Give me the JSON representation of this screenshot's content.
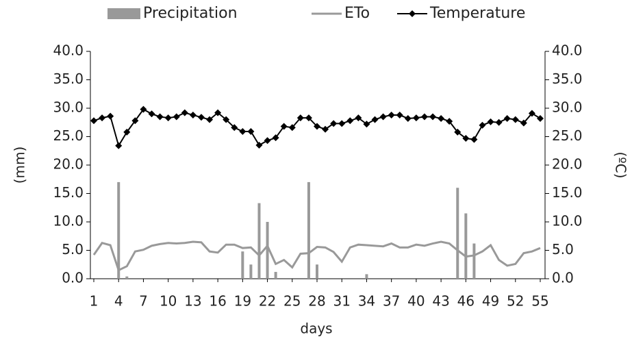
{
  "chart_data": {
    "type": "combo",
    "xlabel": "days",
    "ylabel": "(mm)",
    "y2label": "(ºC)",
    "x": [
      1,
      2,
      3,
      4,
      5,
      6,
      7,
      8,
      9,
      10,
      11,
      12,
      13,
      14,
      15,
      16,
      17,
      18,
      19,
      20,
      21,
      22,
      23,
      24,
      25,
      26,
      27,
      28,
      29,
      30,
      31,
      32,
      33,
      34,
      35,
      36,
      37,
      38,
      39,
      40,
      41,
      42,
      43,
      44,
      45,
      46,
      47,
      48,
      49,
      50,
      51,
      52,
      53,
      54,
      55
    ],
    "xlim": [
      1,
      55
    ],
    "xticks": [
      1,
      4,
      7,
      10,
      13,
      16,
      19,
      22,
      25,
      28,
      31,
      34,
      37,
      40,
      43,
      46,
      49,
      52,
      55
    ],
    "ylim": [
      0,
      40
    ],
    "yticks": [
      {
        "value": 0,
        "label": "0.0"
      },
      {
        "value": 5,
        "label": "5.0"
      },
      {
        "value": 10,
        "label": "10.0"
      },
      {
        "value": 15,
        "label": "15.0"
      },
      {
        "value": 20,
        "label": "20.0"
      },
      {
        "value": 25,
        "label": "25.0"
      },
      {
        "value": 30,
        "label": "30.0"
      },
      {
        "value": 35,
        "label": "35.0"
      },
      {
        "value": 40,
        "label": "40.0"
      }
    ],
    "y2lim": [
      0,
      40
    ],
    "y2ticks": [
      {
        "value": 0,
        "label": "0.0"
      },
      {
        "value": 5,
        "label": "5.0"
      },
      {
        "value": 10,
        "label": "10.0"
      },
      {
        "value": 15,
        "label": "15.0"
      },
      {
        "value": 20,
        "label": "20.0"
      },
      {
        "value": 25,
        "label": "25.0"
      },
      {
        "value": 30,
        "label": "30.0"
      },
      {
        "value": 35,
        "label": "35.0"
      },
      {
        "value": 40,
        "label": "40.0"
      }
    ],
    "series": [
      {
        "name": "Precipitation",
        "type": "bar",
        "color": "#999999",
        "values": [
          0,
          0,
          0,
          17.0,
          0.4,
          0,
          0,
          0,
          0,
          0,
          0,
          0,
          0,
          0,
          0,
          0,
          0,
          0,
          4.8,
          2.5,
          13.3,
          10.0,
          1.2,
          0,
          0,
          0,
          17.0,
          2.5,
          0,
          0,
          0,
          0,
          0,
          0.8,
          0,
          0,
          0,
          0,
          0,
          0,
          0,
          0,
          0,
          0,
          16.0,
          11.5,
          6.2,
          0,
          0,
          0,
          0,
          0,
          0,
          0,
          0
        ]
      },
      {
        "name": "ETo",
        "type": "line",
        "color": "#999999",
        "values": [
          4.2,
          6.3,
          5.9,
          1.5,
          2.2,
          4.8,
          5.1,
          5.8,
          6.1,
          6.3,
          6.2,
          6.3,
          6.5,
          6.4,
          4.8,
          4.6,
          6.0,
          6.0,
          5.4,
          5.5,
          4.1,
          5.8,
          2.6,
          3.3,
          2.0,
          4.4,
          4.5,
          5.6,
          5.5,
          4.7,
          3.0,
          5.5,
          6.0,
          5.9,
          5.8,
          5.7,
          6.2,
          5.5,
          5.5,
          6.0,
          5.8,
          6.2,
          6.5,
          6.2,
          5.0,
          3.9,
          4.1,
          4.8,
          5.9,
          3.3,
          2.3,
          2.6,
          4.5,
          4.8,
          5.4
        ]
      },
      {
        "name": "Temperature",
        "type": "line",
        "color": "#000000",
        "axis": "y2",
        "values": [
          27.8,
          28.3,
          28.6,
          23.4,
          25.8,
          27.8,
          29.8,
          29.0,
          28.5,
          28.3,
          28.5,
          29.2,
          28.8,
          28.4,
          28.0,
          29.2,
          28.0,
          26.6,
          25.9,
          25.9,
          23.5,
          24.3,
          24.8,
          26.8,
          26.6,
          28.3,
          28.3,
          26.8,
          26.3,
          27.3,
          27.3,
          27.8,
          28.3,
          27.2,
          28.0,
          28.5,
          28.8,
          28.8,
          28.2,
          28.3,
          28.5,
          28.5,
          28.2,
          27.7,
          25.8,
          24.7,
          24.5,
          27.0,
          27.6,
          27.5,
          28.2,
          28.0,
          27.4,
          29.1,
          28.2
        ]
      }
    ]
  }
}
